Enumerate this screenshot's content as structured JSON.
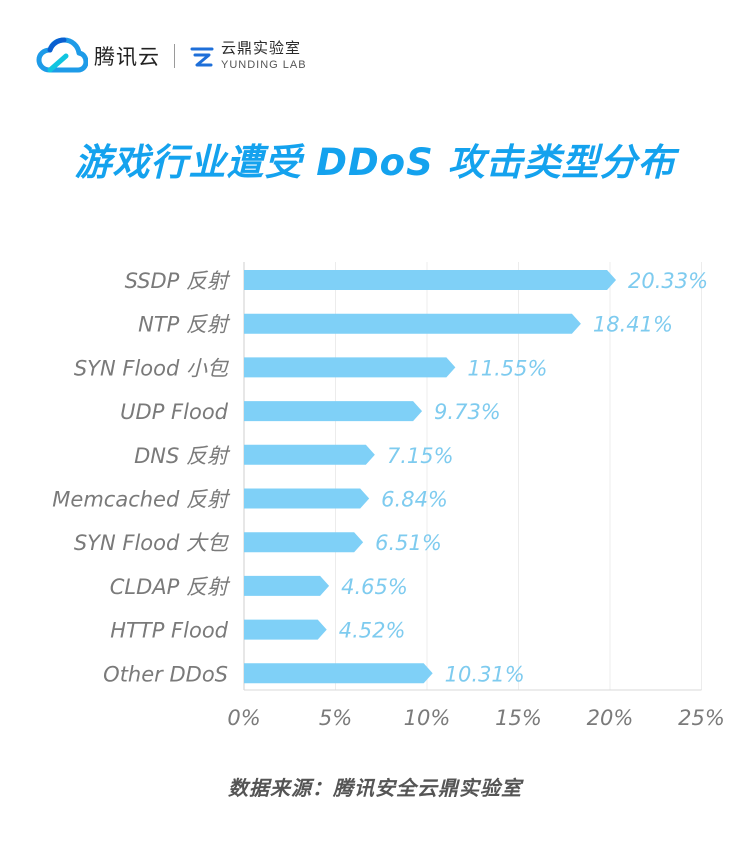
{
  "header": {
    "brand_name": "腾讯云",
    "lab_name": "云鼎实验室",
    "lab_name_en": "YUNDING LAB"
  },
  "title": "游戏行业遭受 DDoS 攻击类型分布",
  "source": "数据来源：腾讯安全云鼎实验室",
  "colors": {
    "title": "#14a2ee",
    "bar": "#7fd0f7",
    "value_label": "#7ecbef",
    "axis_text": "#7a7a7a"
  },
  "chart_data": {
    "type": "bar",
    "orientation": "horizontal",
    "title": "游戏行业遭受 DDoS 攻击类型分布",
    "categories": [
      "SSDP 反射",
      "NTP 反射",
      "SYN Flood 小包",
      "UDP Flood",
      "DNS 反射",
      "Memcached 反射",
      "SYN Flood 大包",
      "CLDAP 反射",
      "HTTP Flood",
      "Other DDoS"
    ],
    "values": [
      20.33,
      18.41,
      11.55,
      9.73,
      7.15,
      6.84,
      6.51,
      4.65,
      4.52,
      10.31
    ],
    "value_labels": [
      "20.33%",
      "18.41%",
      "11.55%",
      "9.73%",
      "7.15%",
      "6.84%",
      "6.51%",
      "4.65%",
      "4.52%",
      "10.31%"
    ],
    "x_ticks": [
      0,
      5,
      10,
      15,
      20,
      25
    ],
    "x_tick_labels": [
      "0%",
      "5%",
      "10%",
      "15%",
      "20%",
      "25%"
    ],
    "xlim": [
      0,
      25
    ],
    "xlabel": "",
    "ylabel": "",
    "grid": "vertical"
  }
}
